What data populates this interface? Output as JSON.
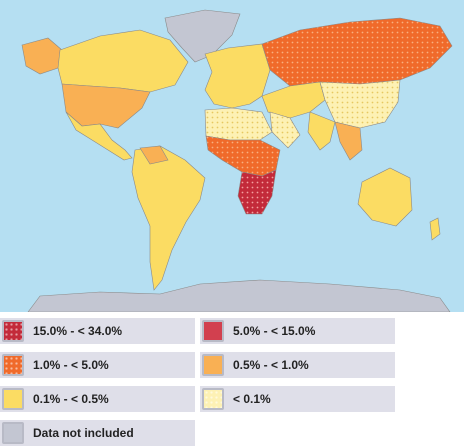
{
  "legend": {
    "items": [
      {
        "label": "15.0% - < 34.0%",
        "color": "#c32a3a",
        "pattern": "dots"
      },
      {
        "label": "5.0% - < 15.0%",
        "color": "#d2404f",
        "pattern": "solid"
      },
      {
        "label": "1.0% - < 5.0%",
        "color": "#f06a2a",
        "pattern": "dots"
      },
      {
        "label": "0.5% - < 1.0%",
        "color": "#f9b054",
        "pattern": "solid"
      },
      {
        "label": "0.1% - < 0.5%",
        "color": "#fbdc63",
        "pattern": "solid"
      },
      {
        "label": "< 0.1%",
        "color": "#fdf1b4",
        "pattern": "dots"
      },
      {
        "label": "Data not included",
        "color": "#c3c6d2",
        "pattern": "solid"
      }
    ]
  }
}
